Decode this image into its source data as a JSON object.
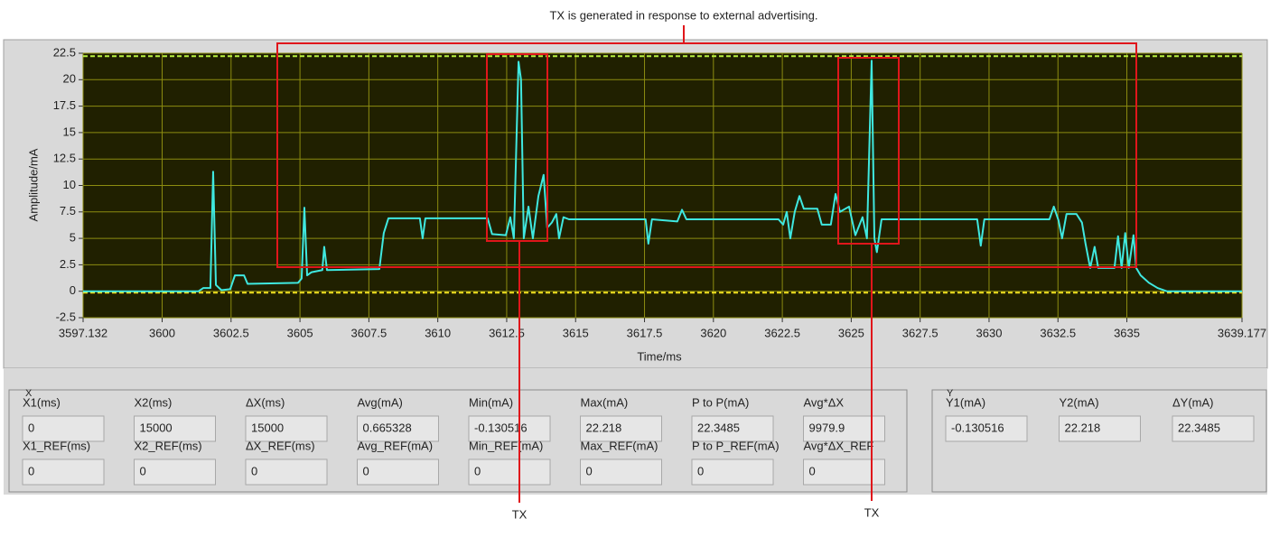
{
  "chart_data": {
    "type": "line",
    "x_label": "Time/ms",
    "y_label": "Amplitude/mA",
    "x": [
      3597.132,
      3601.32,
      3601.49,
      3601.75,
      3601.85,
      3601.95,
      3602.15,
      3602.47,
      3602.64,
      3602.97,
      3603.1,
      3604.93,
      3605.06,
      3605.16,
      3605.26,
      3605.42,
      3605.81,
      3605.88,
      3605.98,
      3607.88,
      3608.04,
      3608.21,
      3609.35,
      3609.45,
      3609.55,
      3611.81,
      3611.97,
      3612.47,
      3612.63,
      3612.76,
      3612.93,
      3613.02,
      3613.12,
      3613.29,
      3613.45,
      3613.65,
      3613.84,
      3613.97,
      3614.14,
      3614.3,
      3614.4,
      3614.56,
      3614.76,
      3617.54,
      3617.64,
      3617.77,
      3618.69,
      3618.86,
      3619.02,
      3622.36,
      3622.53,
      3622.66,
      3622.79,
      3622.95,
      3623.12,
      3623.28,
      3623.77,
      3623.93,
      3624.26,
      3624.43,
      3624.59,
      3624.92,
      3625.15,
      3625.41,
      3625.57,
      3625.74,
      3625.84,
      3625.93,
      3626.1,
      3629.57,
      3629.7,
      3629.83,
      3632.19,
      3632.35,
      3632.52,
      3632.65,
      3632.81,
      3633.17,
      3633.37,
      3633.5,
      3633.67,
      3633.83,
      3633.96,
      3634.55,
      3634.68,
      3634.81,
      3634.94,
      3635.07,
      3635.24,
      3635.34,
      3635.5,
      3635.8,
      3636.12,
      3636.45,
      3639.177
    ],
    "series": [
      {
        "color": "#3fe8e0",
        "values": [
          0,
          0,
          0.3,
          0.3,
          11.3,
          0.6,
          0.1,
          0.2,
          1.5,
          1.5,
          0.7,
          0.8,
          1.2,
          7.9,
          1.5,
          1.8,
          2.0,
          4.2,
          2.0,
          2.1,
          5.5,
          6.9,
          6.9,
          5.0,
          6.9,
          6.9,
          5.4,
          5.3,
          7.0,
          5.0,
          21.7,
          20.0,
          5.0,
          8.0,
          5.0,
          9.0,
          11.0,
          6.0,
          6.5,
          7.3,
          5.0,
          7.0,
          6.8,
          6.8,
          4.5,
          6.8,
          6.6,
          7.7,
          6.8,
          6.8,
          6.3,
          7.5,
          5.0,
          7.5,
          9.0,
          7.8,
          7.8,
          6.3,
          6.3,
          9.2,
          7.5,
          8.0,
          5.3,
          7.0,
          5.0,
          21.8,
          5.0,
          3.7,
          6.8,
          6.8,
          4.3,
          6.8,
          6.8,
          8.0,
          6.7,
          5.0,
          7.3,
          7.3,
          6.5,
          4.5,
          2.2,
          4.2,
          2.2,
          2.2,
          5.2,
          2.2,
          5.5,
          2.2,
          5.3,
          2.2,
          1.5,
          0.8,
          0.3,
          0,
          0
        ]
      }
    ],
    "xlim": [
      3597.132,
      3639.177
    ],
    "ylim": [
      -2.5,
      22.5
    ],
    "xticks": [
      3597.132,
      3600,
      3602.5,
      3605,
      3607.5,
      3610,
      3612.5,
      3615,
      3617.5,
      3620,
      3622.5,
      3625,
      3627.5,
      3630,
      3632.5,
      3635,
      3639.177
    ],
    "yticks": [
      22.5,
      20,
      17.5,
      15,
      12.5,
      10,
      7.5,
      5,
      2.5,
      0,
      -2.5
    ],
    "grid": true
  },
  "annotations": {
    "main": "TX is generated in response to external advertising.",
    "tx_labels": [
      "TX",
      "TX"
    ]
  },
  "panels": {
    "x": {
      "title": "X",
      "rows": [
        [
          {
            "label": "X1(ms)",
            "value": 0
          },
          {
            "label": "X2(ms)",
            "value": 15000
          },
          {
            "label": "ΔX(ms)",
            "value": 15000
          },
          {
            "label": "Avg(mA)",
            "value": 0.665328
          },
          {
            "label": "Min(mA)",
            "value": -0.130516
          },
          {
            "label": "Max(mA)",
            "value": 22.218
          },
          {
            "label": "P to P(mA)",
            "value": 22.3485
          },
          {
            "label": "Avg*ΔX",
            "value": 9979.9
          }
        ],
        [
          {
            "label": "X1_REF(ms)",
            "value": 0
          },
          {
            "label": "X2_REF(ms)",
            "value": 0
          },
          {
            "label": "ΔX_REF(ms)",
            "value": 0
          },
          {
            "label": "Avg_REF(mA)",
            "value": 0
          },
          {
            "label": "Min_REF(mA)",
            "value": 0
          },
          {
            "label": "Max_REF(mA)",
            "value": 0
          },
          {
            "label": "P to P_REF(mA)",
            "value": 0
          },
          {
            "label": "Avg*ΔX_REF",
            "value": 0
          }
        ]
      ]
    },
    "y": {
      "title": "Y",
      "rows": [
        [
          {
            "label": "Y1(mA)",
            "value": -0.130516
          },
          {
            "label": "Y2(mA)",
            "value": 22.218
          },
          {
            "label": "ΔY(mA)",
            "value": 22.3485
          }
        ]
      ]
    }
  }
}
